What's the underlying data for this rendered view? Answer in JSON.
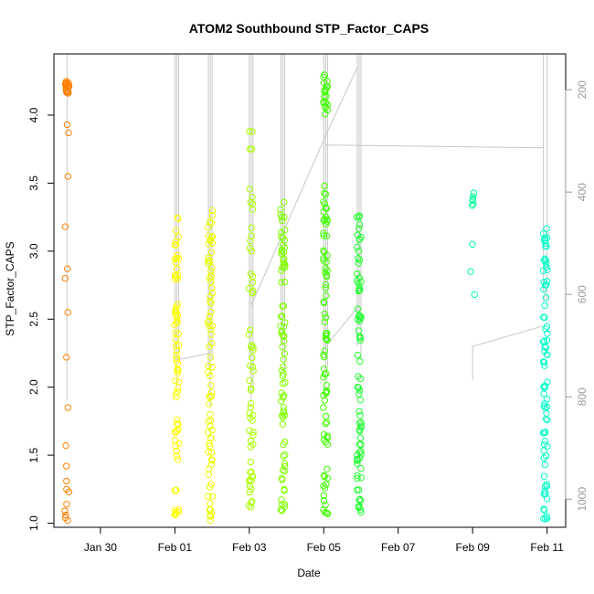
{
  "chart_data": {
    "type": "scatter",
    "title": "ATOM2 Southbound STP_Factor_CAPS",
    "xlabel": "Date",
    "ylabel": "STP_Factor_CAPS",
    "x_ticks": [
      "Jan 30",
      "Feb 01",
      "Feb 03",
      "Feb 05",
      "Feb 07",
      "Feb 09",
      "Feb 11"
    ],
    "x_tick_values": [
      1,
      3,
      5,
      7,
      9,
      11,
      13
    ],
    "y_ticks": [
      "1.0",
      "1.5",
      "2.0",
      "2.5",
      "3.0",
      "3.5",
      "4.0"
    ],
    "y_tick_values": [
      1.0,
      1.5,
      2.0,
      2.5,
      3.0,
      3.5,
      4.0
    ],
    "y2_ticks": [
      "200",
      "400",
      "600",
      "800",
      "1000"
    ],
    "y2_tick_values": [
      200,
      400,
      600,
      800,
      1000
    ],
    "xlim": [
      -0.25,
      13.5
    ],
    "ylim": [
      0.97,
      4.45
    ],
    "y2lim": [
      1055,
      130
    ],
    "grid": false,
    "series": [
      {
        "color": "#ff8000",
        "x": 0.1,
        "clusters": [
          [
            4.15,
            4.25,
            22
          ]
        ],
        "extra": [
          3.93,
          3.87,
          3.55,
          3.18,
          2.87,
          2.8,
          2.55,
          2.22,
          1.85,
          1.57,
          1.42,
          1.31,
          1.25,
          1.23,
          1.14,
          1.09,
          1.06,
          1.04,
          1.02
        ]
      },
      {
        "color": "#ffff00",
        "x": 3.05,
        "clusters": [
          [
            1.05,
            3.25,
            70
          ]
        ],
        "extra": [
          2.95,
          2.97,
          3.05,
          1.08,
          1.1
        ]
      },
      {
        "color": "#ecff00",
        "x": 3.95,
        "clusters": [
          [
            1.0,
            3.32,
            75
          ]
        ],
        "extra": [
          2.93,
          2.95,
          1.02,
          1.05
        ]
      },
      {
        "color": "#aaff00",
        "x": 5.05,
        "clusters": [
          [
            1.12,
            3.55,
            55
          ]
        ],
        "extra": [
          3.88,
          3.88,
          3.75,
          3.75,
          1.12,
          1.13
        ]
      },
      {
        "color": "#80ff00",
        "x": 5.9,
        "clusters": [
          [
            1.08,
            3.36,
            75
          ]
        ],
        "extra": [
          3.25,
          3.25,
          3.36,
          1.1
        ]
      },
      {
        "color": "#40ff00",
        "x": 7.05,
        "clusters": [
          [
            1.07,
            3.5,
            75
          ],
          [
            4.0,
            4.35,
            20
          ]
        ],
        "extra": [
          3.48,
          3.25,
          1.07,
          1.08
        ]
      },
      {
        "color": "#20ff30",
        "x": 7.95,
        "clusters": [
          [
            1.08,
            3.26,
            75
          ]
        ],
        "extra": [
          3.25,
          3.26,
          1.08,
          1.1
        ]
      },
      {
        "color": "#00ffa0",
        "x": 11.0,
        "clusters": [
          [
            3.3,
            3.45,
            6
          ]
        ],
        "extra": [
          3.05,
          2.85,
          2.68
        ]
      },
      {
        "color": "#00ffc8",
        "x": 12.95,
        "clusters": [
          [
            1.03,
            3.25,
            70
          ]
        ],
        "extra": [
          2.75,
          2.72,
          3.08,
          3.1,
          1.03,
          1.05
        ]
      }
    ]
  }
}
